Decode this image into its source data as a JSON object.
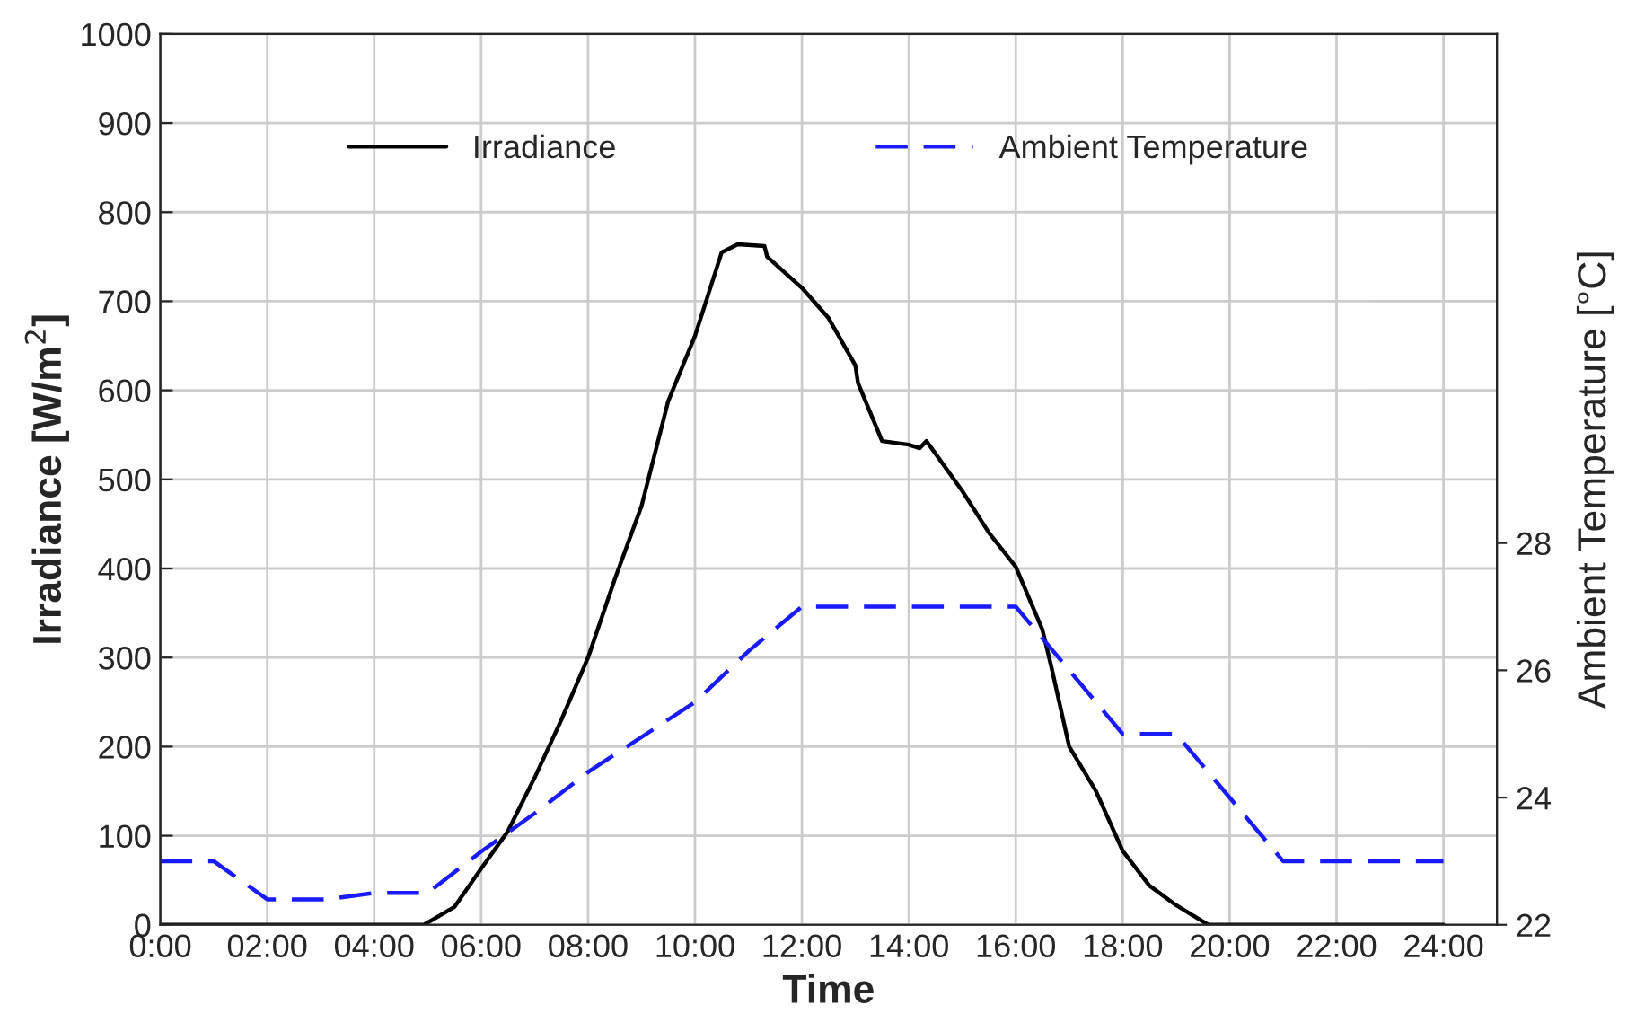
{
  "chart_data": {
    "type": "line",
    "xlabel": "Time",
    "ylabel": "Irradiance [W/m$^{2}$]",
    "y2label": "Ambient Temperature [°C]",
    "xlim": [
      0,
      25
    ],
    "xticks": [
      {
        "value": 0,
        "label": "0:00"
      },
      {
        "value": 2,
        "label": "02:00"
      },
      {
        "value": 4,
        "label": "04:00"
      },
      {
        "value": 6,
        "label": "06:00"
      },
      {
        "value": 8,
        "label": "08:00"
      },
      {
        "value": 10,
        "label": "10:00"
      },
      {
        "value": 12,
        "label": "12:00"
      },
      {
        "value": 14,
        "label": "14:00"
      },
      {
        "value": 16,
        "label": "16:00"
      },
      {
        "value": 18,
        "label": "18:00"
      },
      {
        "value": 20,
        "label": "20:00"
      },
      {
        "value": 22,
        "label": "22:00"
      },
      {
        "value": 24,
        "label": "24:00"
      }
    ],
    "ylim": [
      0,
      1000
    ],
    "yticks": [
      0,
      100,
      200,
      300,
      400,
      500,
      600,
      700,
      800,
      900,
      1000
    ],
    "y2lim": [
      22,
      36
    ],
    "y2ticks": [
      22,
      24,
      26,
      28
    ],
    "grid": true,
    "legend": "top",
    "marker": "none",
    "series": [
      {
        "name": "Irradiance",
        "color": "#000000",
        "line_style": "solid",
        "x": [
          0,
          4.93,
          5.5,
          6.0,
          6.5,
          7.0,
          7.5,
          8.0,
          8.5,
          9.0,
          9.5,
          10.0,
          10.5,
          10.8,
          11.3,
          11.35,
          12.0,
          12.5,
          13.0,
          13.05,
          13.5,
          14.0,
          14.2,
          14.33,
          15.0,
          15.5,
          16.0,
          16.5,
          16.66,
          17.0,
          17.5,
          18.0,
          18.5,
          19.0,
          19.6,
          24
        ],
        "values": [
          0,
          0,
          20,
          63,
          105,
          165,
          230,
          300,
          388,
          470,
          588,
          661,
          755,
          764,
          762,
          750,
          715,
          681,
          628,
          608,
          543,
          539,
          535,
          543,
          487,
          440,
          402,
          331,
          291,
          200,
          150,
          83,
          44,
          22,
          0,
          0
        ]
      },
      {
        "name": "Ambient Temperature",
        "color": "#1a1aff",
        "line_style": "dashed",
        "axis": "y2",
        "x": [
          0,
          1,
          2,
          3.1,
          4,
          5,
          6,
          7,
          8,
          9,
          10,
          11,
          12,
          16,
          18,
          19,
          21,
          24
        ],
        "values": [
          23.0,
          23.0,
          22.4,
          22.4,
          22.5,
          22.5,
          23.15,
          23.75,
          24.4,
          24.95,
          25.5,
          26.3,
          27.0,
          27.0,
          25.0,
          25.0,
          23.0,
          23.0
        ]
      }
    ]
  }
}
